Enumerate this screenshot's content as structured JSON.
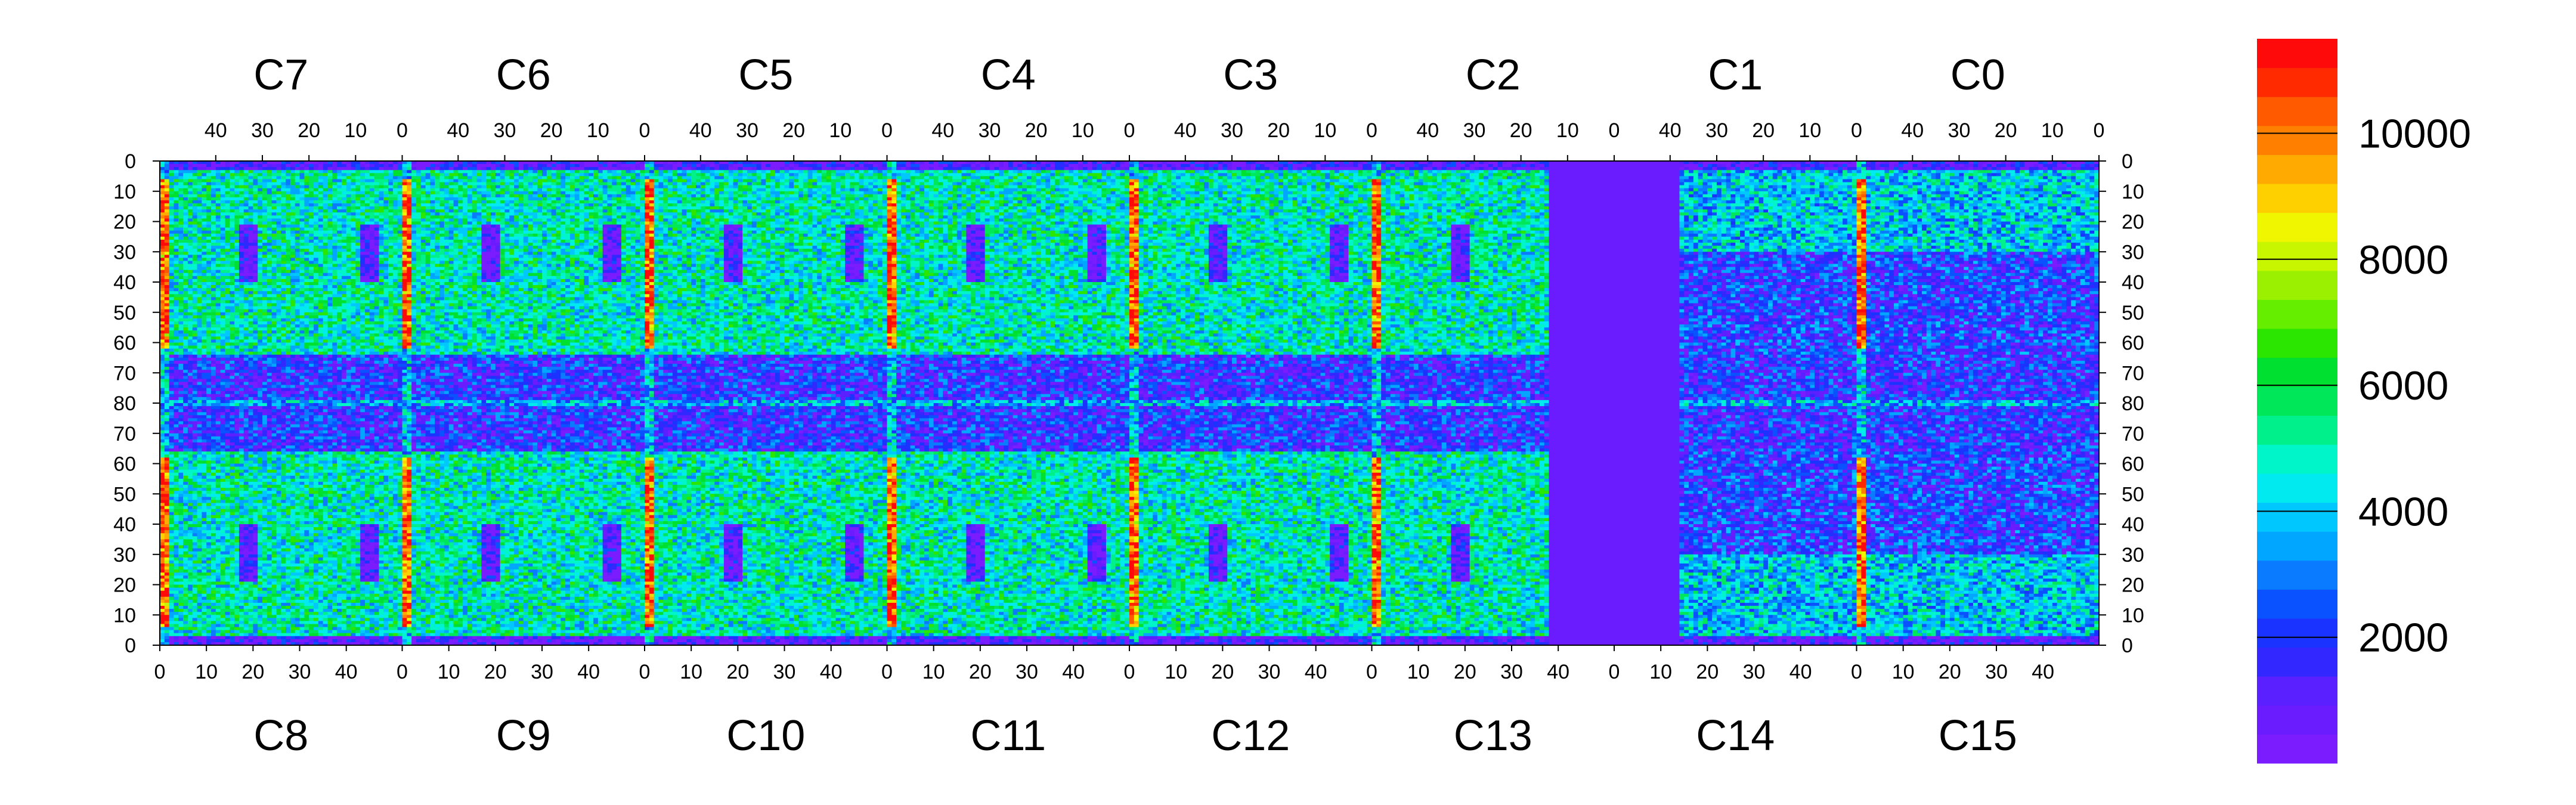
{
  "chart_data": {
    "type": "heatmap",
    "top_chips": [
      "C7",
      "C6",
      "C5",
      "C4",
      "C3",
      "C2",
      "C1",
      "C0"
    ],
    "bottom_chips": [
      "C8",
      "C9",
      "C10",
      "C11",
      "C12",
      "C13",
      "C14",
      "C15"
    ],
    "top_x_ticks": [
      "40",
      "30",
      "20",
      "10",
      "0"
    ],
    "bottom_x_ticks": [
      "0",
      "10",
      "20",
      "30",
      "40"
    ],
    "y_ticks": [
      "0",
      "10",
      "20",
      "30",
      "40",
      "50",
      "60",
      "70",
      "80",
      "70",
      "60",
      "50",
      "40",
      "30",
      "20",
      "10",
      "0"
    ],
    "colorbar": {
      "labels": [
        "2000",
        "4000",
        "6000",
        "8000",
        "10000"
      ],
      "label_values": [
        2000,
        4000,
        6000,
        8000,
        10000
      ],
      "zlim": [
        0,
        11500
      ],
      "colors": [
        "#7b1cff",
        "#6a1cff",
        "#5a20ff",
        "#3228ff",
        "#1a33ff",
        "#0a52ff",
        "#0a7aff",
        "#00a6ff",
        "#00c8ff",
        "#00eaf0",
        "#00f5c8",
        "#00f08c",
        "#00e85a",
        "#00e030",
        "#2ae600",
        "#66ee00",
        "#9af000",
        "#c8f500",
        "#f0f500",
        "#ffd000",
        "#ffaa00",
        "#ff8000",
        "#ff5a00",
        "#ff2a00",
        "#ff0a0a"
      ]
    },
    "grid": false,
    "legend": "colorbar-right"
  }
}
